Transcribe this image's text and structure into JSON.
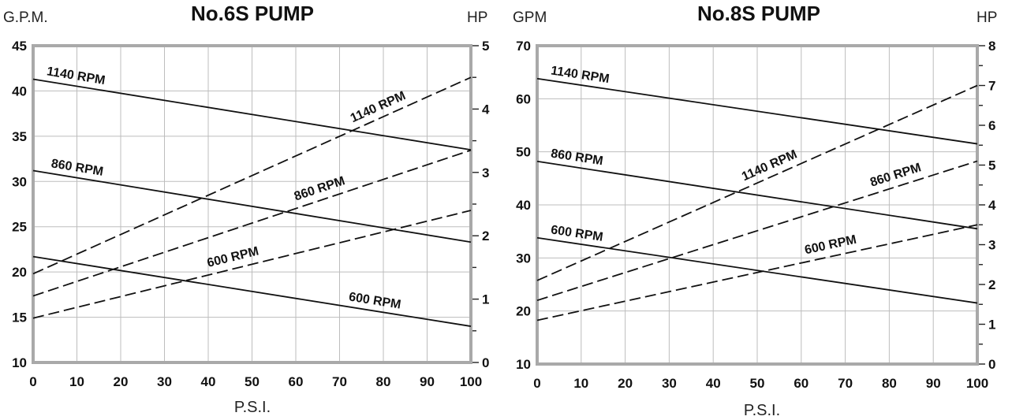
{
  "chart_data": [
    {
      "type": "line",
      "title": "No.6S PUMP",
      "ylabel": "G.P.M.",
      "y2label": "HP",
      "xlabel": "P.S.I.",
      "xlim": [
        0,
        100
      ],
      "ylim": [
        10,
        45
      ],
      "y2lim": [
        0,
        5
      ],
      "grid": true,
      "x_ticks": [
        "0",
        "10",
        "20",
        "30",
        "40",
        "50",
        "60",
        "70",
        "80",
        "90",
        "100"
      ],
      "y_ticks": [
        "10",
        "15",
        "20",
        "25",
        "30",
        "35",
        "40",
        "45"
      ],
      "y2_ticks": [
        "0",
        "1",
        "2",
        "3",
        "4",
        "5"
      ],
      "series": [
        {
          "name": "1140 RPM",
          "axis": "gpm",
          "style": "solid",
          "x": [
            0,
            100
          ],
          "y": [
            41.3,
            33.5
          ]
        },
        {
          "name": "860 RPM",
          "axis": "gpm",
          "style": "solid",
          "x": [
            0,
            100
          ],
          "y": [
            31.2,
            23.3
          ]
        },
        {
          "name": "600 RPM",
          "axis": "gpm",
          "style": "solid",
          "x": [
            0,
            100
          ],
          "y": [
            21.7,
            14.0
          ]
        },
        {
          "name": "1140 RPM",
          "axis": "hp",
          "style": "dashed",
          "x": [
            0,
            100
          ],
          "y": [
            1.4,
            4.5
          ]
        },
        {
          "name": "860 RPM",
          "axis": "hp",
          "style": "dashed",
          "x": [
            0,
            100
          ],
          "y": [
            1.05,
            3.35
          ]
        },
        {
          "name": "600 RPM",
          "axis": "hp",
          "style": "dashed",
          "x": [
            0,
            100
          ],
          "y": [
            0.7,
            2.4
          ]
        }
      ]
    },
    {
      "type": "line",
      "title": "No.8S PUMP",
      "ylabel": "GPM",
      "y2label": "HP",
      "xlabel": "P.S.I.",
      "xlim": [
        0,
        100
      ],
      "ylim": [
        10,
        70
      ],
      "y2lim": [
        0,
        8
      ],
      "grid": true,
      "x_ticks": [
        "0",
        "10",
        "20",
        "30",
        "40",
        "50",
        "60",
        "70",
        "80",
        "90",
        "100"
      ],
      "y_ticks": [
        "10",
        "20",
        "30",
        "40",
        "50",
        "60",
        "70"
      ],
      "y2_ticks": [
        "0",
        "1",
        "2",
        "3",
        "4",
        "5",
        "6",
        "7",
        "8"
      ],
      "series": [
        {
          "name": "1140 RPM",
          "axis": "gpm",
          "style": "solid",
          "x": [
            0,
            100
          ],
          "y": [
            63.8,
            51.5
          ]
        },
        {
          "name": "860 RPM",
          "axis": "gpm",
          "style": "solid",
          "x": [
            0,
            100
          ],
          "y": [
            48.2,
            35.5
          ]
        },
        {
          "name": "600 RPM",
          "axis": "gpm",
          "style": "solid",
          "x": [
            0,
            100
          ],
          "y": [
            33.8,
            21.5
          ]
        },
        {
          "name": "1140 RPM",
          "axis": "hp",
          "style": "dashed",
          "x": [
            0,
            100
          ],
          "y": [
            2.1,
            7.0
          ]
        },
        {
          "name": "860 RPM",
          "axis": "hp",
          "style": "dashed",
          "x": [
            0,
            100
          ],
          "y": [
            1.6,
            5.1
          ]
        },
        {
          "name": "600 RPM",
          "axis": "hp",
          "style": "dashed",
          "x": [
            0,
            100
          ],
          "y": [
            1.1,
            3.5
          ]
        }
      ]
    }
  ]
}
